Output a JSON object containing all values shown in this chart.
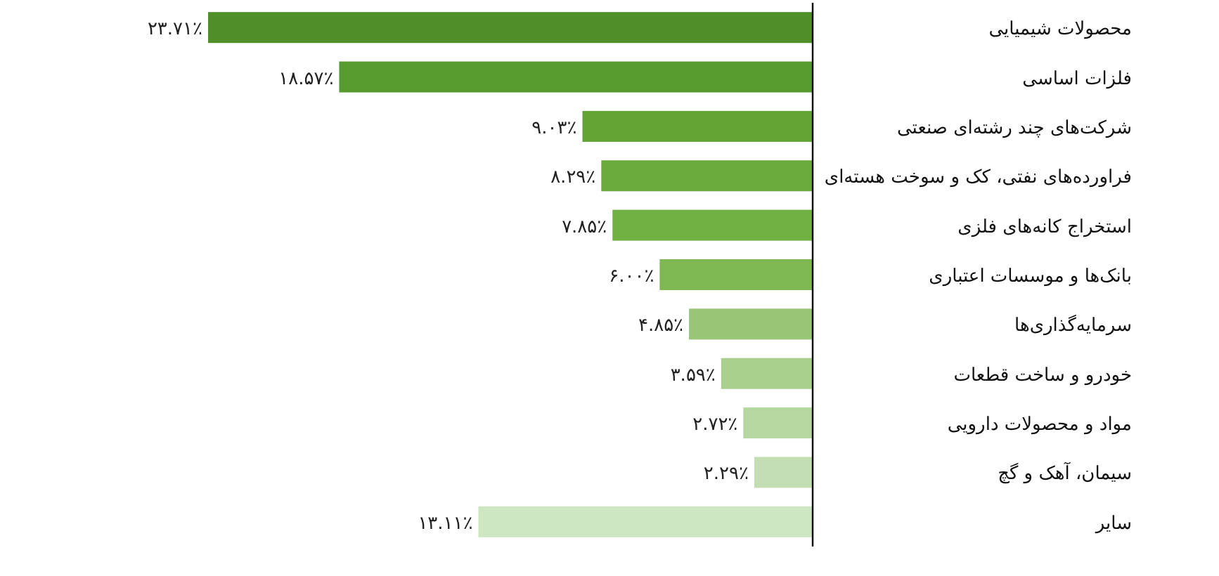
{
  "chart_data": {
    "type": "bar",
    "orientation": "horizontal",
    "categories": [
      "محصولات شیمیایی",
      "فلزات اساسی",
      "شرکت‌های چند رشته‌ای صنعتی",
      "فراورده‌های نفتی، کک و سوخت هسته‌ای",
      "استخراج کانه‌های فلزی",
      "بانک‌ها و موسسات اعتباری",
      "سرمایه‌گذاری‌ها",
      "خودرو و ساخت قطعات",
      "مواد و محصولات دارویی",
      "سیمان، آهک و گچ",
      "سایر"
    ],
    "values": [
      23.71,
      18.57,
      9.03,
      8.29,
      7.85,
      6.0,
      4.85,
      3.59,
      2.72,
      2.29,
      13.11
    ],
    "value_labels": [
      "۲۳.۷۱٪",
      "۱۸.۵۷٪",
      "۹.۰۳٪",
      "۸.۲۹٪",
      "۷.۸۵٪",
      "۶.۰۰٪",
      "۴.۸۵٪",
      "۳.۵۹٪",
      "۲.۷۲٪",
      "۲.۲۹٪",
      "۱۳.۱۱٪"
    ],
    "colors": [
      "#4e8f2a",
      "#579a2f",
      "#62a535",
      "#69ab3c",
      "#71b144",
      "#7fb853",
      "#96c676",
      "#a8d08c",
      "#b5d8a0",
      "#c3deb2",
      "#cfe6c3"
    ]
  }
}
